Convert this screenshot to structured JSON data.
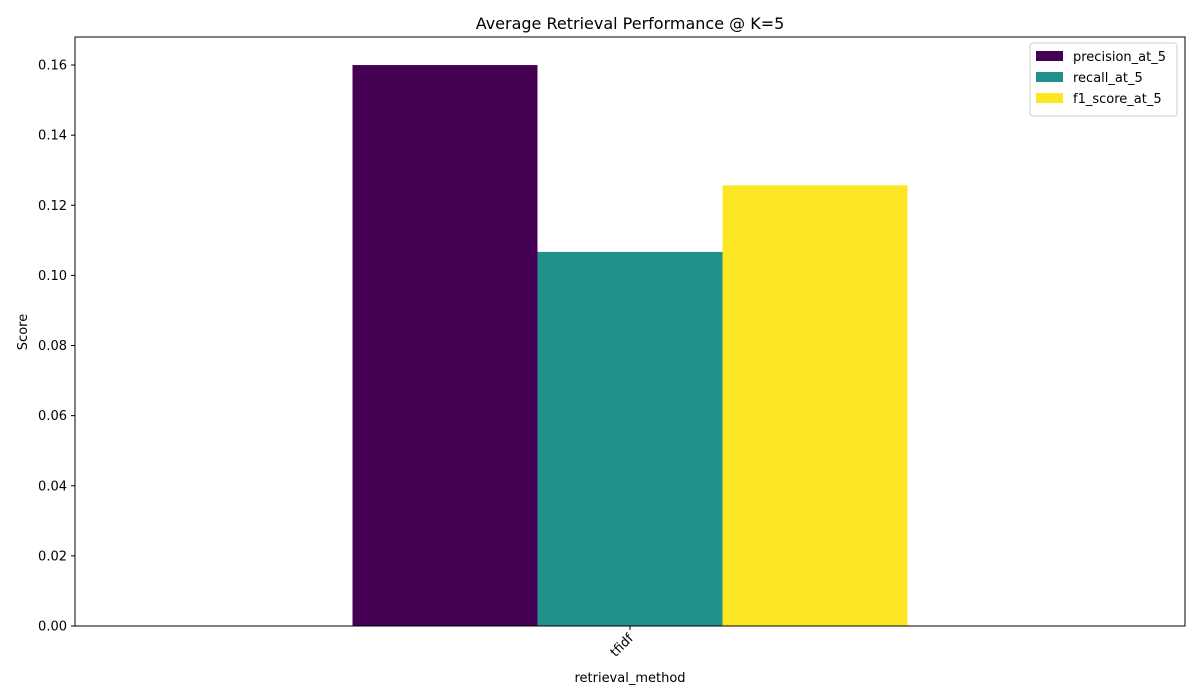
{
  "chart_data": {
    "type": "bar",
    "title": "Average Retrieval Performance @ K=5",
    "xlabel": "retrieval_method",
    "ylabel": "Score",
    "categories": [
      "tfidf"
    ],
    "series": [
      {
        "name": "precision_at_5",
        "values": [
          0.16
        ],
        "color": "#440154"
      },
      {
        "name": "recall_at_5",
        "values": [
          0.1067
        ],
        "color": "#21918c"
      },
      {
        "name": "f1_score_at_5",
        "values": [
          0.1257
        ],
        "color": "#fde725"
      }
    ],
    "ylim": [
      0,
      0.168
    ],
    "yticks": [
      "0.00",
      "0.02",
      "0.04",
      "0.06",
      "0.08",
      "0.10",
      "0.12",
      "0.14",
      "0.16"
    ],
    "ytick_values": [
      0,
      0.02,
      0.04,
      0.06,
      0.08,
      0.1,
      0.12,
      0.14,
      0.16
    ],
    "grid": false,
    "legend_position": "top-right"
  }
}
